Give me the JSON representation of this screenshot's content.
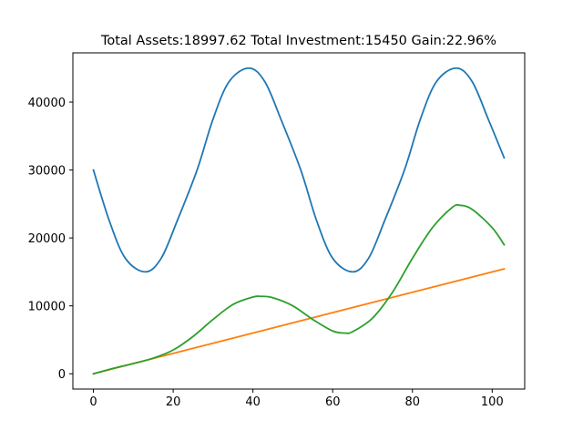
{
  "chart_data": {
    "type": "line",
    "title": "Total Assets:18997.62  Total Investment:15450  Gain:22.96%",
    "xlabel": "",
    "ylabel": "",
    "xlim": [
      -5.15,
      108.15
    ],
    "ylim": [
      -2250,
      47250
    ],
    "x_ticks": [
      0,
      20,
      40,
      60,
      80,
      100
    ],
    "y_ticks": [
      0,
      10000,
      20000,
      30000,
      40000
    ],
    "grid": false,
    "legend": "none",
    "series": [
      {
        "color": "#1f77b4",
        "x": [
          0,
          4,
          8,
          13,
          17,
          21,
          26,
          30,
          34,
          39,
          43,
          47,
          52,
          56,
          60,
          65,
          69,
          73,
          78,
          82,
          86,
          91,
          95,
          99,
          103
        ],
        "y": [
          30000,
          22500,
          17010,
          15000,
          17010,
          22500,
          30000,
          37500,
          42990,
          45000,
          42990,
          37500,
          30000,
          22500,
          17010,
          15000,
          17010,
          22500,
          30000,
          37500,
          42990,
          45000,
          42990,
          37500,
          31800
        ]
      },
      {
        "color": "#ff7f0e",
        "x": [
          0,
          103
        ],
        "y": [
          0,
          15450
        ]
      },
      {
        "color": "#2ca02c",
        "x": [
          0,
          5,
          10,
          15,
          20,
          25,
          30,
          35,
          40,
          42,
          45,
          50,
          55,
          60,
          63,
          65,
          70,
          75,
          80,
          85,
          90,
          92,
          95,
          100,
          103
        ],
        "y": [
          0,
          800,
          1500,
          2300,
          3500,
          5500,
          8000,
          10200,
          11300,
          11400,
          11200,
          10000,
          8000,
          6300,
          6000,
          6200,
          8200,
          12000,
          17000,
          21500,
          24500,
          24800,
          24200,
          21500,
          19000
        ]
      }
    ]
  }
}
